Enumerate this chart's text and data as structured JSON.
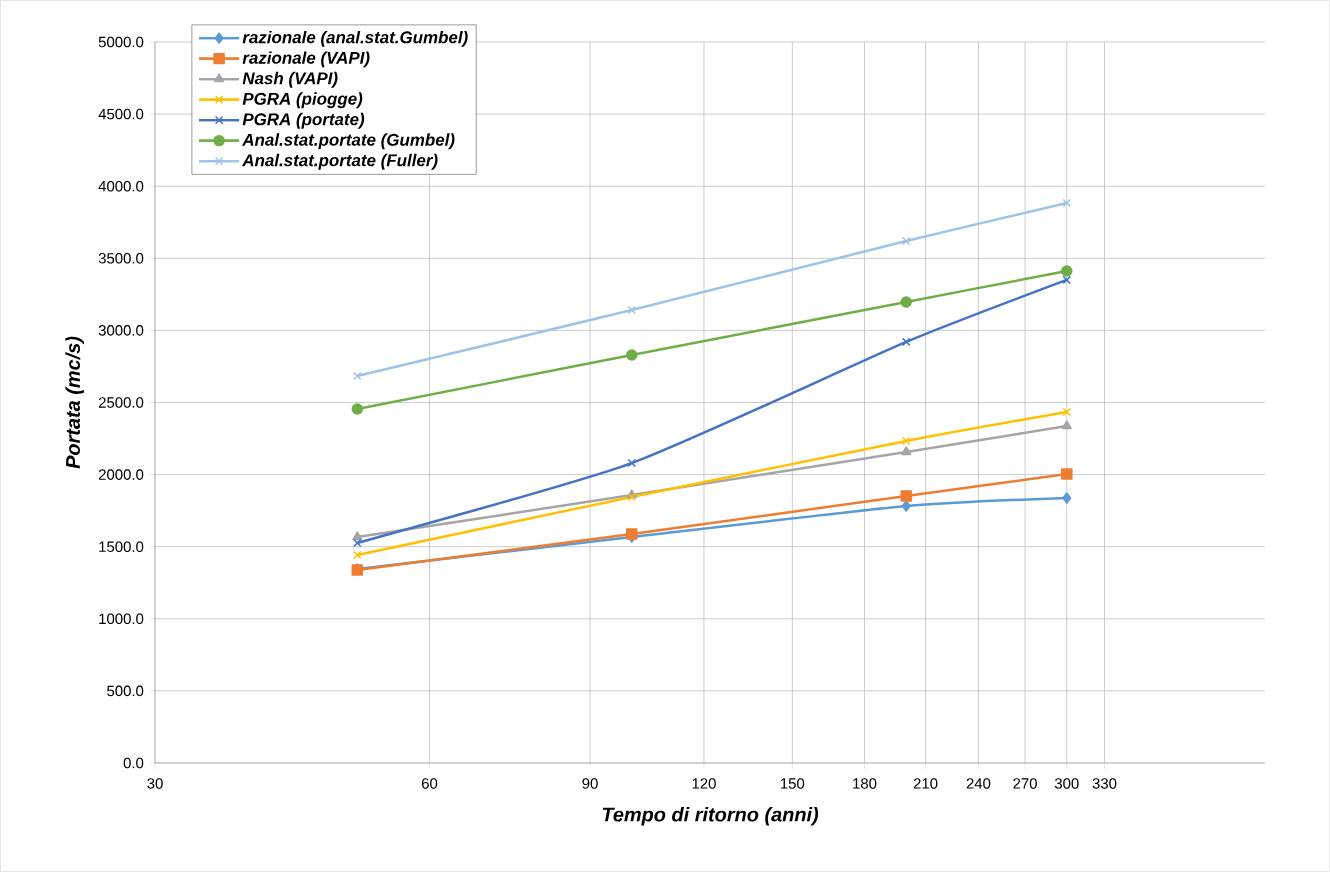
{
  "chart_data": {
    "type": "line",
    "xlabel": "Tempo di ritorno (anni)",
    "ylabel": "Portata (mc/s)",
    "x": [
      50,
      100,
      200,
      300
    ],
    "log": "x",
    "xlim": [
      30,
      495
    ],
    "xticks": [
      30,
      60,
      90,
      120,
      150,
      180,
      210,
      240,
      270,
      300,
      330
    ],
    "ylim": [
      0,
      5000
    ],
    "yticks": [
      {
        "value": 0,
        "label": "0.0"
      },
      {
        "value": 500,
        "label": "500.0"
      },
      {
        "value": 1000,
        "label": "1000.0"
      },
      {
        "value": 1500,
        "label": "1500.0"
      },
      {
        "value": 2000,
        "label": "2000.0"
      },
      {
        "value": 2500,
        "label": "2500.0"
      },
      {
        "value": 3000,
        "label": "3000.0"
      },
      {
        "value": 3500,
        "label": "3500.0"
      },
      {
        "value": 4000,
        "label": "4000.0"
      },
      {
        "value": 4500,
        "label": "4500.0"
      },
      {
        "value": 5000,
        "label": "5000.0"
      }
    ],
    "grid": true,
    "legend": "top left",
    "line_style": "solid",
    "series": [
      {
        "name": "razionale (anal.stat.Gumbel)",
        "color": "#5b9bd5",
        "marker": "diamond",
        "values": [
          1345,
          1567,
          1782,
          1838
        ]
      },
      {
        "name": "razionale (VAPI)",
        "color": "#ed7d31",
        "marker": "square",
        "values": [
          1338,
          1588,
          1852,
          2004
        ]
      },
      {
        "name": "Nash (VAPI)",
        "color": "#a5a5a5",
        "marker": "triangle",
        "values": [
          1567,
          1858,
          2157,
          2337
        ]
      },
      {
        "name": "PGRA (piogge)",
        "color": "#ffc000",
        "marker": "cross",
        "values": [
          1442,
          1845,
          2233,
          2434
        ]
      },
      {
        "name": "PGRA (portate)",
        "color": "#4472c4",
        "marker": "cross",
        "values": [
          1526,
          2080,
          2920,
          3350
        ]
      },
      {
        "name": "Anal.stat.portate (Gumbel)",
        "color": "#70ad47",
        "marker": "circle",
        "values": [
          2455,
          2829,
          3197,
          3412
        ]
      },
      {
        "name": "Anal.stat.portate (Fuller)",
        "color": "#9dc3e6",
        "marker": "cross",
        "values": [
          2684,
          3141,
          3620,
          3883
        ]
      }
    ]
  }
}
